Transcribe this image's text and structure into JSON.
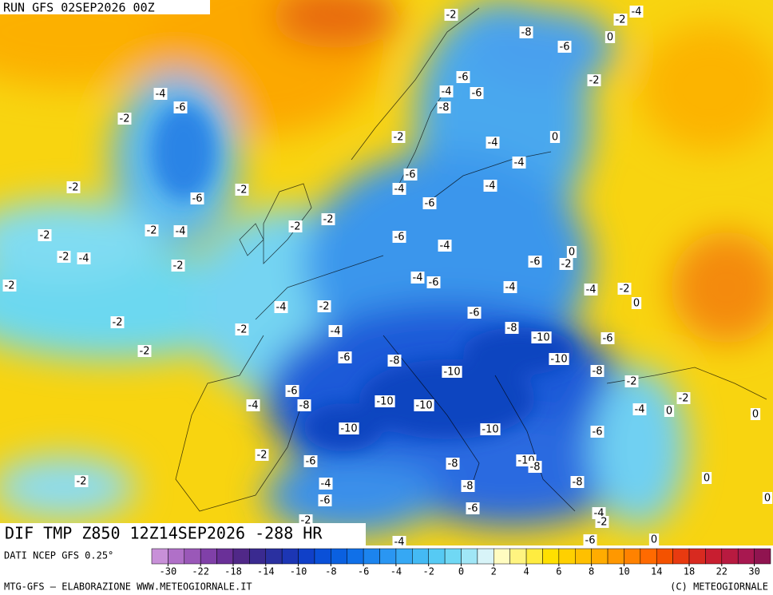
{
  "header": {
    "run": "RUN GFS 02SEP2026 00Z"
  },
  "map": {
    "title": "DIF TMP Z850 12Z14SEP2026 -288 HR",
    "labels": [
      -2,
      -4,
      -2,
      0,
      -8,
      -6,
      -2,
      -6,
      -4,
      -6,
      -8,
      -4,
      -6,
      -2,
      0,
      -4,
      -2,
      -4,
      -6,
      -4,
      -4,
      -2,
      -6,
      -2,
      -6,
      -2,
      -2,
      -2,
      -4,
      -2,
      -6,
      -4,
      -2,
      -4,
      0,
      -6,
      -2,
      -2,
      -2,
      -4,
      -6,
      -4,
      -4,
      -2,
      0,
      -4,
      -2,
      -6,
      -2,
      -2,
      -4,
      -8,
      -10,
      -6,
      -2,
      -6,
      -8,
      -10,
      -10,
      -8,
      -2,
      -6,
      -4,
      -8,
      -10,
      -10,
      -2,
      -4,
      0,
      0,
      -10,
      -10,
      -6,
      -2,
      -6,
      -8,
      -10,
      -8,
      0,
      -2,
      -4,
      -8,
      -8,
      -6,
      0,
      -6,
      -4,
      -2,
      -2,
      -6,
      0,
      -4
    ]
  },
  "colorbar": {
    "source": "DATI NCEP GFS 0.25°",
    "colors": [
      "#c890d8",
      "#b070c8",
      "#9a58b8",
      "#8040a8",
      "#6a3098",
      "#502888",
      "#3a2a90",
      "#2a30a0",
      "#1c36b4",
      "#1040c8",
      "#0a50d8",
      "#0a60e0",
      "#1070e8",
      "#1c84ee",
      "#2a96f2",
      "#36a8f4",
      "#44baf4",
      "#56caf4",
      "#70d8f4",
      "#a0e6f6",
      "#d8f4f8",
      "#fffcc0",
      "#fff480",
      "#ffec40",
      "#ffe000",
      "#ffd000",
      "#ffc000",
      "#ffac00",
      "#ff9800",
      "#ff8200",
      "#ff6a00",
      "#f45200",
      "#e83a10",
      "#d82a20",
      "#c81e30",
      "#b81a40",
      "#a81850",
      "#901450"
    ],
    "ticks": [
      -30,
      -22,
      -18,
      -14,
      -10,
      -8,
      -6,
      -4,
      -2,
      0,
      2,
      4,
      6,
      8,
      10,
      14,
      18,
      22,
      30
    ]
  },
  "footer": {
    "credit": "MTG-GFS — ELABORAZIONE WWW.METEOGIORNALE.IT",
    "copyright": "(C) METEOGIORNALE"
  }
}
